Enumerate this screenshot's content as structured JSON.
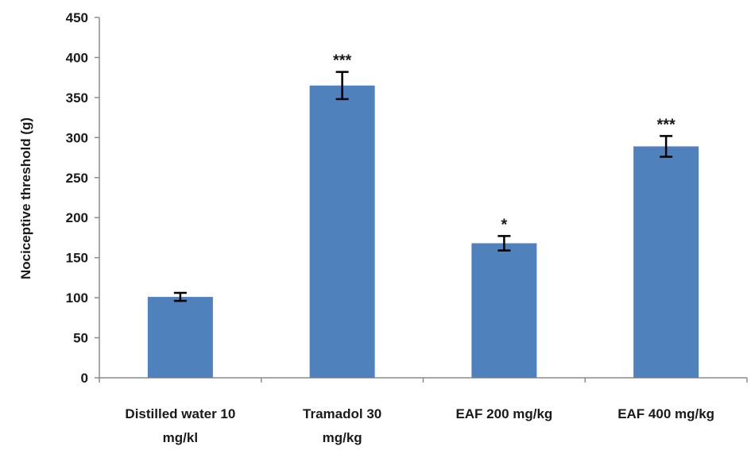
{
  "chart_data": {
    "type": "bar",
    "title": "",
    "xlabel": "",
    "ylabel": "Nociceptive threshold (g)",
    "ylim": [
      0,
      450
    ],
    "yticks": [
      0,
      50,
      100,
      150,
      200,
      250,
      300,
      350,
      400,
      450
    ],
    "grid": false,
    "categories": [
      [
        "Distilled water 10",
        "mg/kl"
      ],
      [
        "Tramadol 30",
        "mg/kg"
      ],
      [
        "EAF 200 mg/kg"
      ],
      [
        "EAF 400 mg/kg"
      ]
    ],
    "values": [
      101,
      365,
      168,
      289
    ],
    "errors": [
      5,
      17,
      9,
      13
    ],
    "annotations": [
      "",
      "***",
      "*",
      "***"
    ],
    "bar_color": "#4f81bd"
  }
}
